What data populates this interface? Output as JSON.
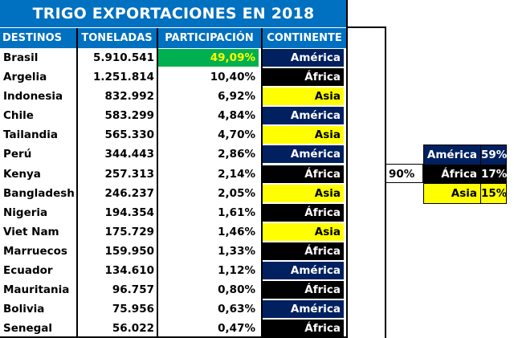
{
  "title": "TRIGO EXPORTACIONES EN 2018",
  "headers": [
    "DESTINOS",
    "TONELADAS",
    "PARTICIPACIÓN",
    "CONTINENTE"
  ],
  "colors": {
    "header_bg": "#0070C0",
    "america_bg": "#002060",
    "africa_bg": "#000000",
    "asia_bg": "#FFFF00",
    "highlight_bg": "#00B050",
    "highlight_text": "#FFFF00"
  },
  "rows": [
    {
      "destino": "Brasil",
      "toneladas": "5.910.541",
      "participacion": "49,09%",
      "continente": "América"
    },
    {
      "destino": "Argelia",
      "toneladas": "1.251.814",
      "participacion": "10,40%",
      "continente": "África"
    },
    {
      "destino": "Indonesia",
      "toneladas": "832.992",
      "participacion": "6,92%",
      "continente": "Asia"
    },
    {
      "destino": "Chile",
      "toneladas": "583.299",
      "participacion": "4,84%",
      "continente": "América"
    },
    {
      "destino": "Tailandia",
      "toneladas": "565.330",
      "participacion": "4,70%",
      "continente": "Asia"
    },
    {
      "destino": "Perú",
      "toneladas": "344.443",
      "participacion": "2,86%",
      "continente": "América"
    },
    {
      "destino": "Kenya",
      "toneladas": "257.313",
      "participacion": "2,14%",
      "continente": "África"
    },
    {
      "destino": "Bangladesh",
      "toneladas": "246.237",
      "participacion": "2,05%",
      "continente": "Asia"
    },
    {
      "destino": "Nigeria",
      "toneladas": "194.354",
      "participacion": "1,61%",
      "continente": "África"
    },
    {
      "destino": "Viet Nam",
      "toneladas": "175.729",
      "participacion": "1,46%",
      "continente": "Asia"
    },
    {
      "destino": "Marruecos",
      "toneladas": "159.950",
      "participacion": "1,33%",
      "continente": "África"
    },
    {
      "destino": "Ecuador",
      "toneladas": "134.610",
      "participacion": "1,12%",
      "continente": "América"
    },
    {
      "destino": "Mauritania",
      "toneladas": "96.757",
      "participacion": "0,80%",
      "continente": "África"
    },
    {
      "destino": "Bolivia",
      "toneladas": "75.956",
      "participacion": "0,63%",
      "continente": "América"
    },
    {
      "destino": "Senegal",
      "toneladas": "56.022",
      "participacion": "0,47%",
      "continente": "África"
    }
  ],
  "total_share": "90%",
  "summary": [
    {
      "continente": "América",
      "share": "59%"
    },
    {
      "continente": "África",
      "share": "17%"
    },
    {
      "continente": "Asia",
      "share": "15%"
    }
  ]
}
